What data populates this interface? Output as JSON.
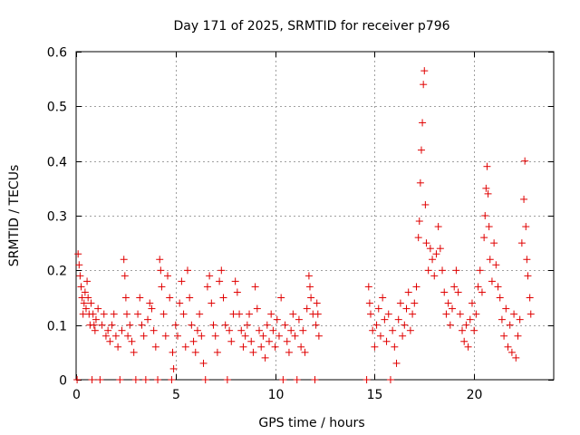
{
  "chart_data": {
    "type": "scatter",
    "title": "Day 171 of 2025, SRMTID for receiver p796",
    "xlabel": "GPS time / hours",
    "ylabel": "SRMTID / TECUs",
    "xlim": [
      0,
      24
    ],
    "ylim": [
      0,
      0.6
    ],
    "xticks": [
      0,
      5,
      10,
      15,
      20
    ],
    "yticks": [
      0,
      0.1,
      0.2,
      0.3,
      0.4,
      0.5,
      0.6
    ],
    "xtick_labels": [
      "0",
      "5",
      "10",
      "15",
      "20"
    ],
    "ytick_labels": [
      "0",
      "0.1",
      "0.2",
      "0.3",
      "0.4",
      "0.5",
      "0.6"
    ],
    "grid": true,
    "marker": "+",
    "color": "#e00000",
    "series": [
      {
        "name": "SRMTID",
        "points": [
          [
            0.05,
            0.0
          ],
          [
            0.1,
            0.23
          ],
          [
            0.15,
            0.21
          ],
          [
            0.2,
            0.19
          ],
          [
            0.25,
            0.17
          ],
          [
            0.3,
            0.15
          ],
          [
            0.35,
            0.12
          ],
          [
            0.4,
            0.14
          ],
          [
            0.45,
            0.16
          ],
          [
            0.5,
            0.13
          ],
          [
            0.55,
            0.18
          ],
          [
            0.6,
            0.15
          ],
          [
            0.65,
            0.12
          ],
          [
            0.7,
            0.1
          ],
          [
            0.75,
            0.14
          ],
          [
            0.8,
            0.0
          ],
          [
            0.85,
            0.12
          ],
          [
            0.9,
            0.1
          ],
          [
            0.95,
            0.09
          ],
          [
            1.0,
            0.11
          ],
          [
            1.1,
            0.13
          ],
          [
            1.2,
            0.0
          ],
          [
            1.3,
            0.1
          ],
          [
            1.4,
            0.12
          ],
          [
            1.5,
            0.08
          ],
          [
            1.6,
            0.09
          ],
          [
            1.7,
            0.07
          ],
          [
            1.8,
            0.1
          ],
          [
            1.9,
            0.12
          ],
          [
            2.0,
            0.08
          ],
          [
            2.1,
            0.06
          ],
          [
            2.2,
            0.0
          ],
          [
            2.3,
            0.09
          ],
          [
            2.4,
            0.22
          ],
          [
            2.45,
            0.19
          ],
          [
            2.5,
            0.15
          ],
          [
            2.55,
            0.12
          ],
          [
            2.6,
            0.08
          ],
          [
            2.7,
            0.1
          ],
          [
            2.8,
            0.07
          ],
          [
            2.9,
            0.05
          ],
          [
            3.0,
            0.0
          ],
          [
            3.1,
            0.12
          ],
          [
            3.2,
            0.15
          ],
          [
            3.3,
            0.1
          ],
          [
            3.4,
            0.08
          ],
          [
            3.5,
            0.0
          ],
          [
            3.6,
            0.11
          ],
          [
            3.7,
            0.14
          ],
          [
            3.8,
            0.13
          ],
          [
            3.9,
            0.09
          ],
          [
            4.0,
            0.06
          ],
          [
            4.1,
            0.0
          ],
          [
            4.2,
            0.22
          ],
          [
            4.25,
            0.2
          ],
          [
            4.3,
            0.17
          ],
          [
            4.4,
            0.12
          ],
          [
            4.5,
            0.08
          ],
          [
            4.6,
            0.19
          ],
          [
            4.7,
            0.15
          ],
          [
            4.8,
            0.0
          ],
          [
            4.85,
            0.05
          ],
          [
            4.9,
            0.02
          ],
          [
            5.0,
            0.1
          ],
          [
            5.1,
            0.08
          ],
          [
            5.2,
            0.14
          ],
          [
            5.3,
            0.18
          ],
          [
            5.4,
            0.12
          ],
          [
            5.5,
            0.06
          ],
          [
            5.6,
            0.2
          ],
          [
            5.7,
            0.15
          ],
          [
            5.8,
            0.1
          ],
          [
            5.9,
            0.07
          ],
          [
            6.0,
            0.05
          ],
          [
            6.1,
            0.09
          ],
          [
            6.2,
            0.12
          ],
          [
            6.3,
            0.08
          ],
          [
            6.4,
            0.03
          ],
          [
            6.5,
            0.0
          ],
          [
            6.6,
            0.17
          ],
          [
            6.7,
            0.19
          ],
          [
            6.8,
            0.14
          ],
          [
            6.9,
            0.1
          ],
          [
            7.0,
            0.08
          ],
          [
            7.1,
            0.05
          ],
          [
            7.2,
            0.18
          ],
          [
            7.3,
            0.2
          ],
          [
            7.4,
            0.15
          ],
          [
            7.5,
            0.1
          ],
          [
            7.6,
            0.0
          ],
          [
            7.7,
            0.09
          ],
          [
            7.8,
            0.07
          ],
          [
            7.9,
            0.12
          ],
          [
            8.0,
            0.18
          ],
          [
            8.1,
            0.16
          ],
          [
            8.2,
            0.12
          ],
          [
            8.3,
            0.09
          ],
          [
            8.4,
            0.06
          ],
          [
            8.5,
            0.08
          ],
          [
            8.6,
            0.1
          ],
          [
            8.7,
            0.12
          ],
          [
            8.8,
            0.07
          ],
          [
            8.9,
            0.05
          ],
          [
            9.0,
            0.17
          ],
          [
            9.1,
            0.13
          ],
          [
            9.2,
            0.09
          ],
          [
            9.3,
            0.06
          ],
          [
            9.4,
            0.08
          ],
          [
            9.5,
            0.04
          ],
          [
            9.6,
            0.1
          ],
          [
            9.7,
            0.07
          ],
          [
            9.8,
            0.12
          ],
          [
            9.9,
            0.09
          ],
          [
            10.0,
            0.06
          ],
          [
            10.1,
            0.11
          ],
          [
            10.2,
            0.08
          ],
          [
            10.3,
            0.15
          ],
          [
            10.4,
            0.0
          ],
          [
            10.5,
            0.1
          ],
          [
            10.6,
            0.07
          ],
          [
            10.7,
            0.05
          ],
          [
            10.8,
            0.09
          ],
          [
            10.9,
            0.12
          ],
          [
            11.0,
            0.08
          ],
          [
            11.1,
            0.0
          ],
          [
            11.2,
            0.11
          ],
          [
            11.3,
            0.06
          ],
          [
            11.4,
            0.09
          ],
          [
            11.5,
            0.05
          ],
          [
            11.6,
            0.13
          ],
          [
            11.7,
            0.19
          ],
          [
            11.75,
            0.17
          ],
          [
            11.8,
            0.15
          ],
          [
            11.9,
            0.12
          ],
          [
            12.0,
            0.0
          ],
          [
            12.05,
            0.1
          ],
          [
            12.1,
            0.14
          ],
          [
            12.15,
            0.12
          ],
          [
            12.2,
            0.08
          ],
          [
            14.6,
            0.0
          ],
          [
            14.7,
            0.17
          ],
          [
            14.75,
            0.14
          ],
          [
            14.8,
            0.12
          ],
          [
            14.9,
            0.09
          ],
          [
            15.0,
            0.06
          ],
          [
            15.1,
            0.1
          ],
          [
            15.2,
            0.13
          ],
          [
            15.3,
            0.08
          ],
          [
            15.4,
            0.15
          ],
          [
            15.5,
            0.11
          ],
          [
            15.6,
            0.07
          ],
          [
            15.7,
            0.12
          ],
          [
            15.8,
            0.0
          ],
          [
            15.9,
            0.09
          ],
          [
            16.0,
            0.06
          ],
          [
            16.1,
            0.03
          ],
          [
            16.2,
            0.11
          ],
          [
            16.3,
            0.14
          ],
          [
            16.4,
            0.08
          ],
          [
            16.5,
            0.1
          ],
          [
            16.6,
            0.13
          ],
          [
            16.7,
            0.16
          ],
          [
            16.8,
            0.09
          ],
          [
            16.9,
            0.12
          ],
          [
            17.0,
            0.14
          ],
          [
            17.1,
            0.17
          ],
          [
            17.2,
            0.26
          ],
          [
            17.25,
            0.29
          ],
          [
            17.3,
            0.36
          ],
          [
            17.35,
            0.42
          ],
          [
            17.4,
            0.47
          ],
          [
            17.45,
            0.54
          ],
          [
            17.5,
            0.565
          ],
          [
            17.55,
            0.32
          ],
          [
            17.6,
            0.25
          ],
          [
            17.7,
            0.2
          ],
          [
            17.8,
            0.24
          ],
          [
            17.9,
            0.22
          ],
          [
            18.0,
            0.19
          ],
          [
            18.1,
            0.23
          ],
          [
            18.2,
            0.28
          ],
          [
            18.3,
            0.24
          ],
          [
            18.4,
            0.2
          ],
          [
            18.5,
            0.16
          ],
          [
            18.6,
            0.12
          ],
          [
            18.7,
            0.14
          ],
          [
            18.8,
            0.1
          ],
          [
            18.9,
            0.13
          ],
          [
            19.0,
            0.17
          ],
          [
            19.1,
            0.2
          ],
          [
            19.2,
            0.16
          ],
          [
            19.3,
            0.12
          ],
          [
            19.4,
            0.09
          ],
          [
            19.5,
            0.07
          ],
          [
            19.6,
            0.1
          ],
          [
            19.7,
            0.06
          ],
          [
            19.8,
            0.11
          ],
          [
            19.9,
            0.14
          ],
          [
            20.0,
            0.09
          ],
          [
            20.1,
            0.12
          ],
          [
            20.2,
            0.17
          ],
          [
            20.3,
            0.2
          ],
          [
            20.4,
            0.16
          ],
          [
            20.5,
            0.26
          ],
          [
            20.55,
            0.3
          ],
          [
            20.6,
            0.35
          ],
          [
            20.65,
            0.39
          ],
          [
            20.7,
            0.34
          ],
          [
            20.75,
            0.28
          ],
          [
            20.8,
            0.22
          ],
          [
            20.9,
            0.18
          ],
          [
            21.0,
            0.25
          ],
          [
            21.1,
            0.21
          ],
          [
            21.2,
            0.17
          ],
          [
            21.3,
            0.15
          ],
          [
            21.4,
            0.11
          ],
          [
            21.5,
            0.08
          ],
          [
            21.6,
            0.13
          ],
          [
            21.7,
            0.06
          ],
          [
            21.8,
            0.1
          ],
          [
            21.9,
            0.05
          ],
          [
            22.0,
            0.12
          ],
          [
            22.1,
            0.04
          ],
          [
            22.2,
            0.08
          ],
          [
            22.3,
            0.11
          ],
          [
            22.4,
            0.25
          ],
          [
            22.5,
            0.33
          ],
          [
            22.55,
            0.4
          ],
          [
            22.6,
            0.28
          ],
          [
            22.65,
            0.22
          ],
          [
            22.7,
            0.19
          ],
          [
            22.8,
            0.15
          ],
          [
            22.85,
            0.12
          ]
        ]
      }
    ]
  }
}
